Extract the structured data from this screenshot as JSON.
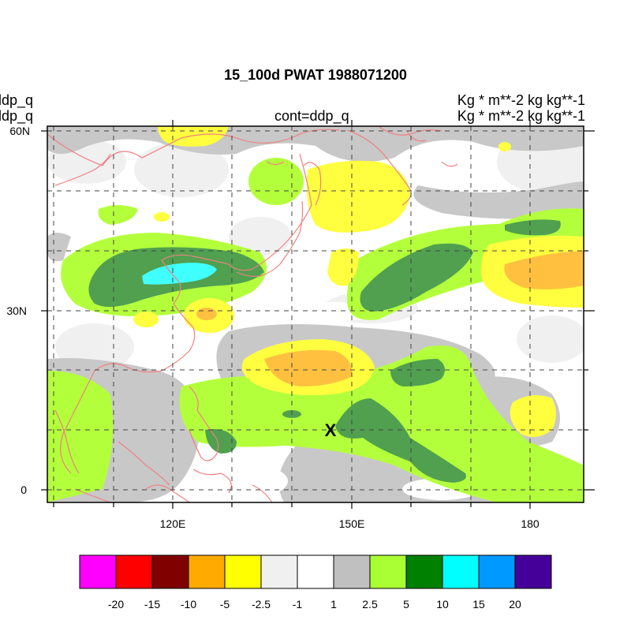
{
  "title": "15_100d PWAT  1988071200",
  "left_labels": [
    "ddp_q",
    "ddp_q"
  ],
  "center_label": "cont=ddp_q",
  "right_labels": [
    "Kg  * m**-2 kg kg**-1",
    "Kg  * m**-2 kg kg**-1"
  ],
  "marker": "X",
  "map": {
    "lat_range": [
      -2,
      61
    ],
    "lon_range": [
      99,
      189
    ],
    "lat_ticks": [
      "0",
      "30N",
      "60N"
    ],
    "lon_ticks": [
      "120E",
      "150E",
      "180"
    ],
    "grid": "dashed, every 10 degrees",
    "coastline_color": "#f08080"
  },
  "colorbar": {
    "colors": [
      "#ff00ff",
      "#ff0000",
      "#800000",
      "#ffaa00",
      "#ffff00",
      "#f0f0f0",
      "#ffffff",
      "#c0c0c0",
      "#aaff33",
      "#008000",
      "#00ffff",
      "#0099ff",
      "#440099"
    ],
    "labels": [
      "-20",
      "-15",
      "-10",
      "-5",
      "-2.5",
      "-1",
      "1",
      "2.5",
      "5",
      "10",
      "15",
      "20"
    ]
  }
}
